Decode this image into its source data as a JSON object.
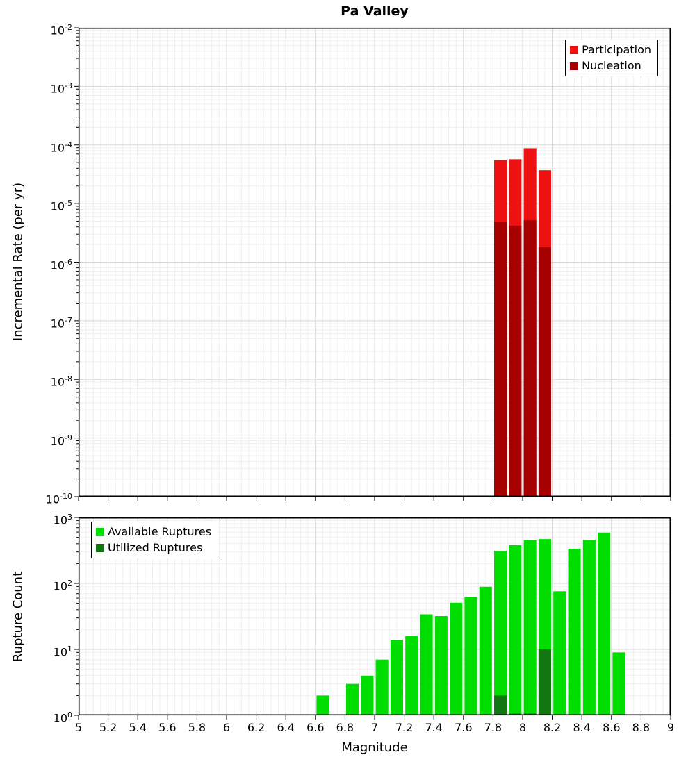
{
  "figure_title": "Pa Valley",
  "colors": {
    "participation": "#ee1111",
    "nucleation": "#a60000",
    "available": "#00dd00",
    "utilized": "#117711",
    "grid_major": "#d8d8d8",
    "grid_minor": "#efefef",
    "axis": "#000000"
  },
  "chart_data": [
    {
      "type": "bar",
      "title": "Pa Valley",
      "ylabel": "Incremental Rate (per yr)",
      "yscale": "log",
      "ylim_exp": [
        -10,
        -2
      ],
      "ytick_exponents": [
        -2,
        -3,
        -4,
        -5,
        -6,
        -7,
        -8,
        -9,
        -10
      ],
      "xlim": [
        5,
        9
      ],
      "xtick_values": [
        5,
        5.2,
        5.4,
        5.6,
        5.8,
        6,
        6.2,
        6.4,
        6.6,
        6.8,
        7,
        7.2,
        7.4,
        7.6,
        7.8,
        8,
        8.2,
        8.4,
        8.6,
        8.8,
        9
      ],
      "xtick_labels": [
        "5",
        "5.2",
        "5.4",
        "5.6",
        "5.8",
        "6",
        "6.2",
        "6.4",
        "6.6",
        "6.8",
        "7",
        "7.2",
        "7.4",
        "7.6",
        "7.8",
        "8",
        "8.2",
        "8.4",
        "8.6",
        "8.8",
        "9"
      ],
      "show_xtick_labels": false,
      "bar_width": 0.1,
      "grid": true,
      "legend_position": "top-right",
      "series": [
        {
          "name": "Participation",
          "color": "#ee1111",
          "x": [
            7.85,
            7.95,
            8.05,
            8.15
          ],
          "values": [
            5.5e-05,
            5.7e-05,
            8.8e-05,
            3.7e-05
          ]
        },
        {
          "name": "Nucleation",
          "color": "#a60000",
          "x": [
            7.85,
            7.95,
            8.05,
            8.15
          ],
          "values": [
            4.8e-06,
            4.2e-06,
            5.2e-06,
            1.8e-06
          ]
        }
      ]
    },
    {
      "type": "bar",
      "title": "",
      "ylabel": "Rupture Count",
      "xlabel": "Magnitude",
      "yscale": "log",
      "ylim_exp": [
        0,
        3
      ],
      "ytick_exponents": [
        3,
        2,
        1,
        0
      ],
      "xlim": [
        5,
        9
      ],
      "xtick_values": [
        5,
        5.2,
        5.4,
        5.6,
        5.8,
        6,
        6.2,
        6.4,
        6.6,
        6.8,
        7,
        7.2,
        7.4,
        7.6,
        7.8,
        8,
        8.2,
        8.4,
        8.6,
        8.8,
        9
      ],
      "xtick_labels": [
        "5",
        "5.2",
        "5.4",
        "5.6",
        "5.8",
        "6",
        "6.2",
        "6.4",
        "6.6",
        "6.8",
        "7",
        "7.2",
        "7.4",
        "7.6",
        "7.8",
        "8",
        "8.2",
        "8.4",
        "8.6",
        "8.8",
        "9"
      ],
      "show_xtick_labels": true,
      "bar_width": 0.1,
      "grid": true,
      "legend_position": "top-left",
      "series": [
        {
          "name": "Available Ruptures",
          "color": "#00dd00",
          "x": [
            6.65,
            6.85,
            6.95,
            7.05,
            7.15,
            7.25,
            7.35,
            7.45,
            7.55,
            7.65,
            7.75,
            7.85,
            7.95,
            8.05,
            8.15,
            8.25,
            8.35,
            8.45,
            8.55,
            8.65
          ],
          "values": [
            2,
            3,
            4,
            7,
            14,
            16,
            34,
            32,
            51,
            63,
            89,
            313,
            380,
            450,
            470,
            76,
            335,
            460,
            590,
            9
          ]
        },
        {
          "name": "Utilized Ruptures",
          "color": "#117711",
          "x": [
            7.85,
            7.95,
            8.05,
            8.15
          ],
          "values": [
            2,
            1,
            1,
            10
          ]
        }
      ]
    }
  ]
}
